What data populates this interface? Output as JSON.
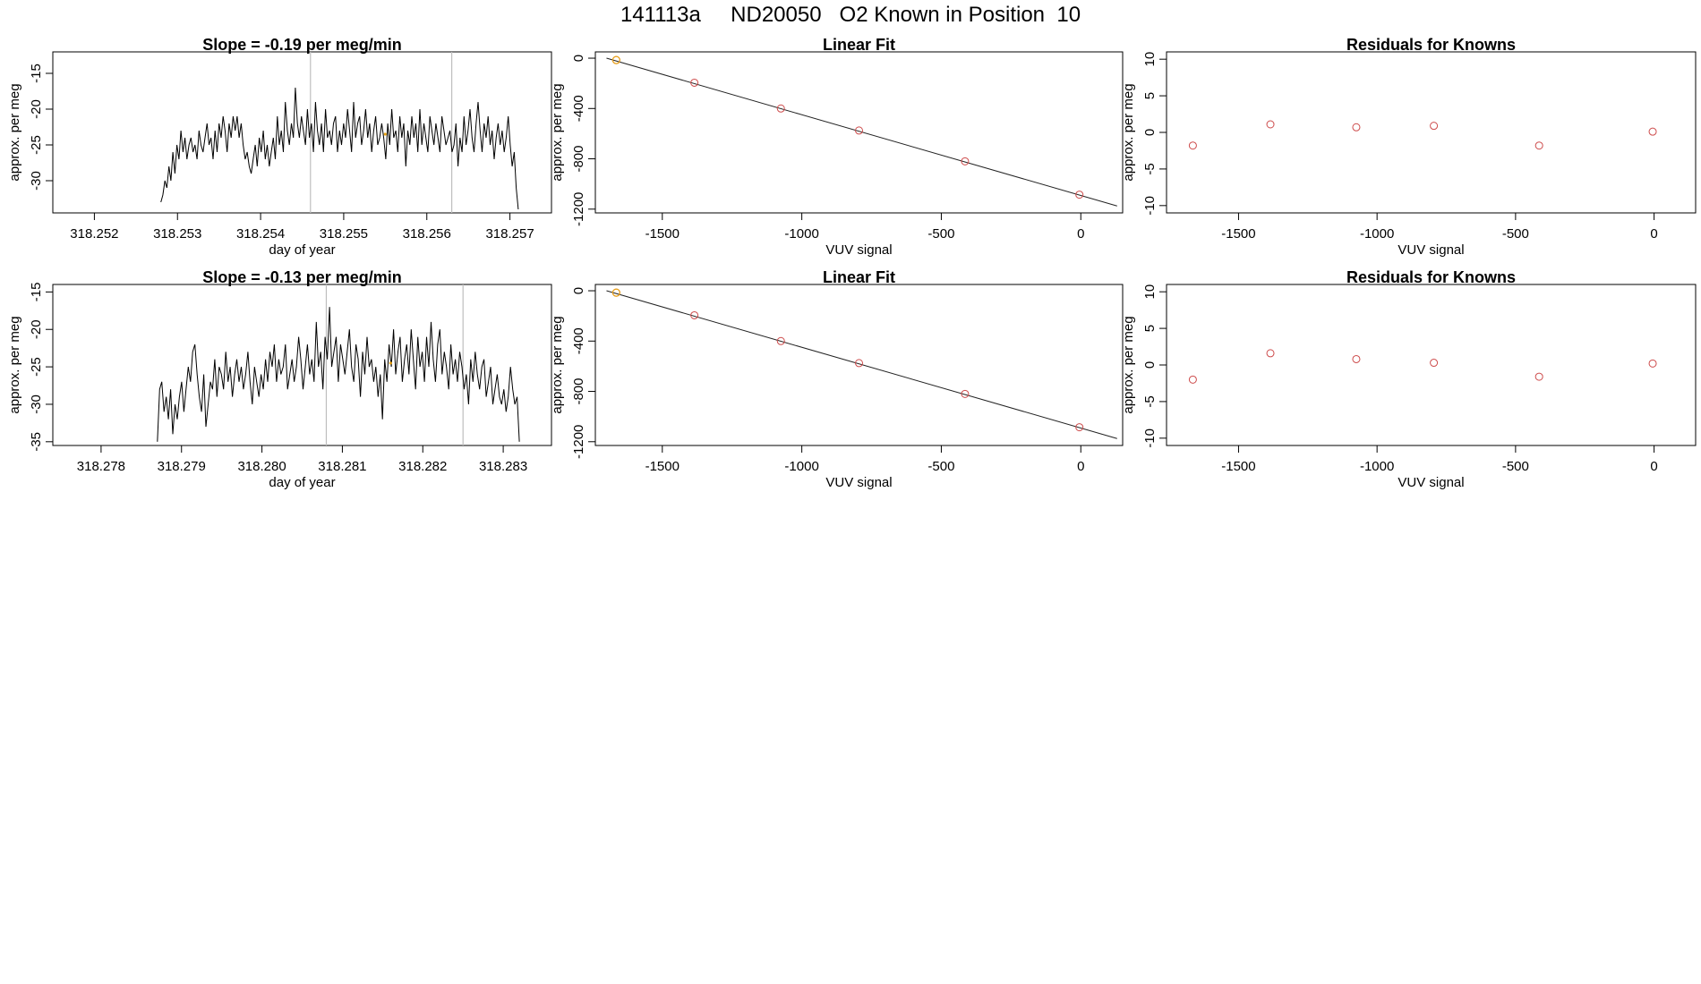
{
  "figure": {
    "title": "141113a     ND20050   O2 Known in Position  10"
  },
  "colors": {
    "trace": "#000000",
    "fit_line": "#222222",
    "marker": "#cd4a4a",
    "highlight": "#e8a317",
    "vline": "#bebebe"
  },
  "chart_data": [
    {
      "id": "ts1",
      "type": "line",
      "title": "Slope =  -0.19  per meg/min",
      "xlabel": "day of year",
      "ylabel": "approx. per meg",
      "xlim": [
        318.2515,
        318.2575
      ],
      "ylim": [
        -34.5,
        -12
      ],
      "xticks": [
        318.252,
        318.253,
        318.254,
        318.255,
        318.256,
        318.257
      ],
      "xtick_labels": [
        "318.252",
        "318.253",
        "318.254",
        "318.255",
        "318.256",
        "318.257"
      ],
      "yticks": [
        -30,
        -25,
        -20,
        -15
      ],
      "ytick_labels": [
        "-30",
        "-25",
        "-20",
        "-15"
      ],
      "vlines": [
        318.2546,
        318.2563
      ],
      "highlight_point": {
        "x": 318.2555,
        "y": -23.5
      },
      "series": [
        {
          "x_start": 318.2528,
          "x_end": 318.2571,
          "values": [
            -33,
            -32,
            -30,
            -31,
            -28,
            -30,
            -26,
            -29,
            -25,
            -27,
            -23,
            -26,
            -24,
            -27,
            -25,
            -24,
            -26,
            -25,
            -27,
            -23,
            -25,
            -26,
            -24,
            -22,
            -25,
            -24,
            -27,
            -23,
            -26,
            -22,
            -24,
            -21,
            -23,
            -26,
            -22,
            -24,
            -21,
            -23,
            -21,
            -24,
            -22,
            -25,
            -27,
            -26,
            -28,
            -29,
            -27,
            -25,
            -28,
            -24,
            -26,
            -23,
            -27,
            -25,
            -28,
            -26,
            -24,
            -27,
            -21,
            -25,
            -23,
            -26,
            -19,
            -23,
            -25,
            -22,
            -24,
            -17,
            -22,
            -24,
            -21,
            -23,
            -25,
            -20,
            -24,
            -22,
            -26,
            -19,
            -23,
            -25,
            -22,
            -26,
            -20,
            -24,
            -23,
            -25,
            -22,
            -21,
            -26,
            -23,
            -25,
            -22,
            -24,
            -20,
            -23,
            -26,
            -19,
            -24,
            -22,
            -21,
            -25,
            -23,
            -20,
            -24,
            -22,
            -26,
            -23,
            -21,
            -25,
            -24,
            -22,
            -24,
            -27,
            -22,
            -25,
            -20,
            -24,
            -23,
            -26,
            -21,
            -24,
            -22,
            -28,
            -23,
            -25,
            -21,
            -24,
            -22,
            -26,
            -20,
            -25,
            -22,
            -24,
            -26,
            -21,
            -23,
            -25,
            -22,
            -24,
            -26,
            -21,
            -23,
            -25,
            -24,
            -23,
            -26,
            -25,
            -22,
            -28,
            -24,
            -26,
            -21,
            -25,
            -23,
            -20,
            -24,
            -26,
            -22,
            -19,
            -23,
            -26,
            -22,
            -24,
            -21,
            -25,
            -23,
            -27,
            -24,
            -22,
            -25,
            -23,
            -26,
            -24,
            -21,
            -25,
            -28,
            -26,
            -31,
            -34
          ]
        }
      ]
    },
    {
      "id": "fit1",
      "type": "scatter",
      "title": "Linear Fit",
      "xlabel": "VUV signal",
      "ylabel": "approx. per meg",
      "xlim": [
        -1740,
        150
      ],
      "ylim": [
        -1230,
        50
      ],
      "xticks": [
        -1500,
        -1000,
        -500,
        0
      ],
      "xtick_labels": [
        "-1500",
        "-1000",
        "-500",
        "0"
      ],
      "yticks": [
        -1200,
        -800,
        -400,
        0
      ],
      "ytick_labels": [
        "-1200",
        "-800",
        "-400",
        "0"
      ],
      "fit_line": {
        "x": [
          -1700,
          130
        ],
        "y": [
          0,
          -1175
        ]
      },
      "highlight_point": {
        "x": -1665,
        "y": -15
      },
      "points": {
        "x": [
          -1665,
          -1385,
          -1075,
          -795,
          -415,
          -5
        ],
        "y": [
          -15,
          -195,
          -400,
          -575,
          -820,
          -1085
        ]
      }
    },
    {
      "id": "res1",
      "type": "scatter",
      "title": "Residuals for Knowns",
      "xlabel": "VUV signal",
      "ylabel": "approx. per meg",
      "xlim": [
        -1760,
        150
      ],
      "ylim": [
        -11,
        11
      ],
      "xticks": [
        -1500,
        -1000,
        -500,
        0
      ],
      "xtick_labels": [
        "-1500",
        "-1000",
        "-500",
        "0"
      ],
      "yticks": [
        -10,
        -5,
        0,
        5,
        10
      ],
      "ytick_labels": [
        "-10",
        "-5",
        "0",
        "5",
        "10"
      ],
      "points": {
        "x": [
          -1665,
          -1385,
          -1075,
          -795,
          -415,
          -5
        ],
        "y": [
          -1.8,
          1.1,
          0.7,
          0.9,
          -1.8,
          0.1
        ]
      }
    },
    {
      "id": "ts2",
      "type": "line",
      "title": "Slope =  -0.13  per meg/min",
      "xlabel": "day of year",
      "ylabel": "approx. per meg",
      "xlim": [
        318.2774,
        318.2836
      ],
      "ylim": [
        -35.5,
        -14
      ],
      "xticks": [
        318.278,
        318.279,
        318.28,
        318.281,
        318.282,
        318.283
      ],
      "xtick_labels": [
        "318.278",
        "318.279",
        "318.280",
        "318.281",
        "318.282",
        "318.283"
      ],
      "yticks": [
        -35,
        -30,
        -25,
        -20,
        -15
      ],
      "ytick_labels": [
        "-35",
        "-30",
        "-25",
        "-20",
        "-15"
      ],
      "vlines": [
        318.2808,
        318.2825
      ],
      "highlight_point": {
        "x": 318.2816,
        "y": -24.5
      },
      "series": [
        {
          "x_start": 318.2787,
          "x_end": 318.2832,
          "values": [
            -35,
            -28,
            -27,
            -31,
            -29,
            -32,
            -28,
            -34,
            -30,
            -32,
            -29,
            -27,
            -31,
            -28,
            -25,
            -27,
            -23,
            -22,
            -26,
            -29,
            -31,
            -26,
            -33,
            -30,
            -27,
            -28,
            -24,
            -29,
            -25,
            -26,
            -28,
            -23,
            -27,
            -25,
            -29,
            -26,
            -24,
            -27,
            -25,
            -28,
            -26,
            -23,
            -27,
            -30,
            -25,
            -27,
            -29,
            -26,
            -28,
            -24,
            -27,
            -23,
            -25,
            -22,
            -27,
            -24,
            -26,
            -25,
            -22,
            -28,
            -26,
            -24,
            -27,
            -25,
            -21,
            -24,
            -28,
            -25,
            -22,
            -26,
            -24,
            -27,
            -19,
            -25,
            -23,
            -28,
            -21,
            -24,
            -17,
            -25,
            -23,
            -21,
            -27,
            -22,
            -24,
            -26,
            -23,
            -20,
            -25,
            -27,
            -22,
            -24,
            -29,
            -23,
            -26,
            -21,
            -25,
            -24,
            -27,
            -25,
            -29,
            -26,
            -32,
            -24,
            -27,
            -22,
            -25,
            -20,
            -26,
            -23,
            -21,
            -27,
            -24,
            -22,
            -26,
            -20,
            -24,
            -28,
            -21,
            -25,
            -23,
            -27,
            -21,
            -25,
            -19,
            -24,
            -27,
            -22,
            -20,
            -26,
            -23,
            -25,
            -28,
            -22,
            -26,
            -24,
            -27,
            -23,
            -25,
            -28,
            -26,
            -30,
            -24,
            -27,
            -23,
            -26,
            -28,
            -25,
            -24,
            -29,
            -27,
            -25,
            -30,
            -28,
            -26,
            -29,
            -30,
            -28,
            -31,
            -29,
            -25,
            -28,
            -30,
            -29,
            -35
          ]
        }
      ]
    },
    {
      "id": "fit2",
      "type": "scatter",
      "title": "Linear Fit",
      "xlabel": "VUV signal",
      "ylabel": "approx. per meg",
      "xlim": [
        -1740,
        150
      ],
      "ylim": [
        -1230,
        50
      ],
      "xticks": [
        -1500,
        -1000,
        -500,
        0
      ],
      "xtick_labels": [
        "-1500",
        "-1000",
        "-500",
        "0"
      ],
      "yticks": [
        -1200,
        -800,
        -400,
        0
      ],
      "ytick_labels": [
        "-1200",
        "-800",
        "-400",
        "0"
      ],
      "fit_line": {
        "x": [
          -1700,
          130
        ],
        "y": [
          0,
          -1175
        ]
      },
      "highlight_point": {
        "x": -1665,
        "y": -15
      },
      "points": {
        "x": [
          -1665,
          -1385,
          -1075,
          -795,
          -415,
          -5
        ],
        "y": [
          -15,
          -195,
          -400,
          -575,
          -820,
          -1085
        ]
      }
    },
    {
      "id": "res2",
      "type": "scatter",
      "title": "Residuals for Knowns",
      "xlabel": "VUV signal",
      "ylabel": "approx. per meg",
      "xlim": [
        -1760,
        150
      ],
      "ylim": [
        -11,
        11
      ],
      "xticks": [
        -1500,
        -1000,
        -500,
        0
      ],
      "xtick_labels": [
        "-1500",
        "-1000",
        "-500",
        "0"
      ],
      "yticks": [
        -10,
        -5,
        0,
        5,
        10
      ],
      "ytick_labels": [
        "-10",
        "-5",
        "0",
        "5",
        "10"
      ],
      "points": {
        "x": [
          -1665,
          -1385,
          -1075,
          -795,
          -415,
          -5
        ],
        "y": [
          -2.0,
          1.6,
          0.8,
          0.3,
          -1.6,
          0.2
        ]
      }
    }
  ]
}
